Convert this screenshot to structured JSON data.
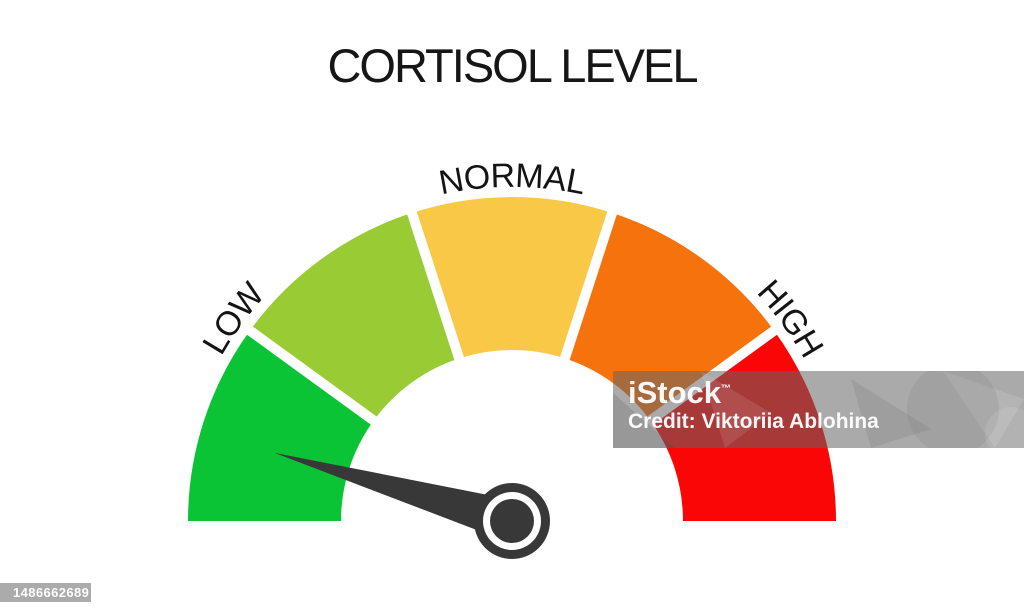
{
  "background_color": "#FFFFFF",
  "chart_data": {
    "type": "gauge",
    "title": "CORTISOL LEVEL",
    "start_angle_deg": 180,
    "end_angle_deg": 360,
    "segment_gap_color": "#FFFFFF",
    "segments": [
      {
        "name": "low",
        "color": "#0BC436"
      },
      {
        "name": "low-normal",
        "color": "#98CB34"
      },
      {
        "name": "normal",
        "color": "#F9C846"
      },
      {
        "name": "normal-high",
        "color": "#F5720D"
      },
      {
        "name": "high",
        "color": "#FB0606"
      }
    ],
    "arc_labels": [
      {
        "text": "LOW",
        "position_pct": 20
      },
      {
        "text": "NORMAL",
        "position_pct": 50
      },
      {
        "text": "HIGH",
        "position_pct": 80
      }
    ],
    "needle": {
      "points_to": "LOW",
      "sweep_angle_deg": 196,
      "color": "#383838"
    },
    "label_color": "#141414"
  },
  "watermark": {
    "brand": "iStock",
    "trademark_symbol": "™",
    "credit_line": "Credit: Viktoriia Ablohina",
    "asset_id": "1486662689"
  }
}
